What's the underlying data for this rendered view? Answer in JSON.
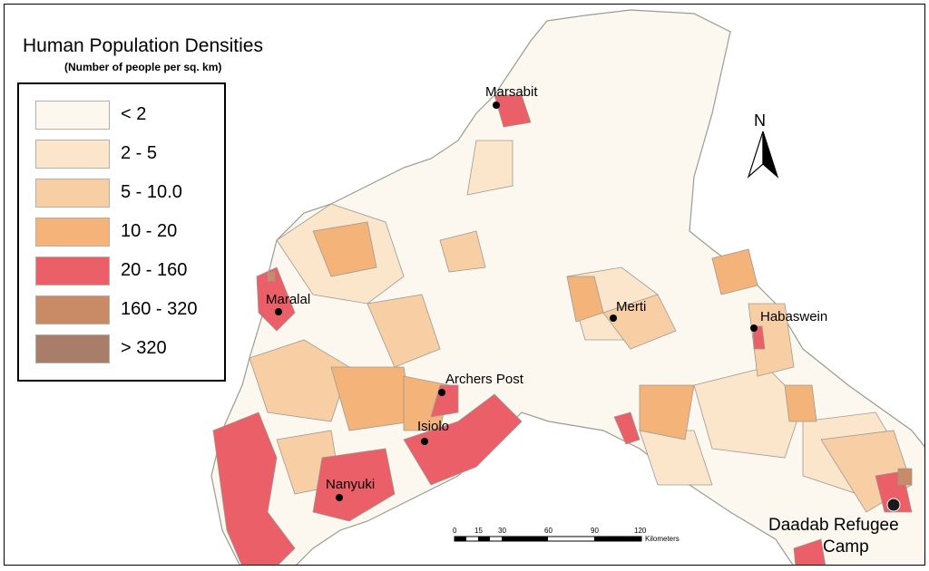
{
  "map": {
    "title": "Human Population Densities",
    "subtitle": "(Number of people per sq. km)",
    "north_label": "N",
    "legend": [
      {
        "label": "< 2",
        "color": "#fdf8ef"
      },
      {
        "label": "2 - 5",
        "color": "#fbe6cb"
      },
      {
        "label": "5 - 10.0",
        "color": "#f8cfa5"
      },
      {
        "label": "10 - 20",
        "color": "#f4b479"
      },
      {
        "label": "20 - 160",
        "color": "#ea5f68"
      },
      {
        "label": "160 - 320",
        "color": "#c98a66"
      },
      {
        "label": "> 320",
        "color": "#a87e6a"
      }
    ],
    "places": [
      {
        "name": "Marsabit"
      },
      {
        "name": "Maralal"
      },
      {
        "name": "Merti"
      },
      {
        "name": "Habaswein"
      },
      {
        "name": "Archers Post"
      },
      {
        "name": "Isiolo"
      },
      {
        "name": "Nanyuki"
      }
    ],
    "camp": {
      "line1": "Daadab Refugee",
      "line2": "Camp"
    },
    "scale_bar": {
      "ticks": [
        "0",
        "15",
        "30",
        "60",
        "90",
        "120"
      ],
      "unit": "Kilometers"
    },
    "region_fill_color": "#fdf8ef",
    "border_color": "#9c9a93"
  }
}
